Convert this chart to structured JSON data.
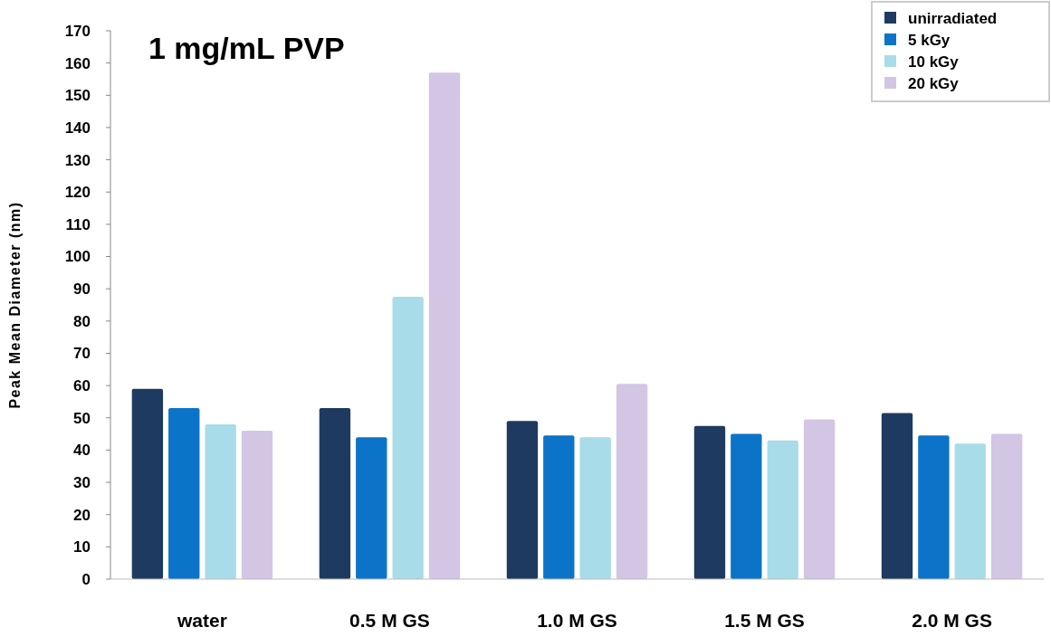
{
  "chart_data": {
    "type": "bar",
    "title": "1 mg/mL PVP",
    "ylabel": "Peak Mean Diameter (nm)",
    "categories": [
      "water",
      "0.5 M GS",
      "1.0 M GS",
      "1.5 M GS",
      "2.0 M GS"
    ],
    "series": [
      {
        "name": "unirradiated",
        "color": "#1f3a60",
        "values": [
          59,
          53,
          49,
          47.5,
          51.5
        ]
      },
      {
        "name": "5 kGy",
        "color": "#0b74c8",
        "values": [
          53,
          44,
          44.5,
          45,
          44.5
        ]
      },
      {
        "name": "10 kGy",
        "color": "#a8dce8",
        "values": [
          48,
          87.5,
          44,
          43,
          42
        ]
      },
      {
        "name": "20 kGy",
        "color": "#d2c6e4",
        "values": [
          46,
          157,
          60.5,
          49.5,
          45
        ]
      }
    ],
    "ylim": [
      0,
      170
    ],
    "yticks": [
      0,
      10,
      20,
      30,
      40,
      50,
      60,
      70,
      80,
      90,
      100,
      110,
      120,
      130,
      140,
      150,
      160,
      170
    ],
    "grid": false,
    "legend": "top right"
  }
}
